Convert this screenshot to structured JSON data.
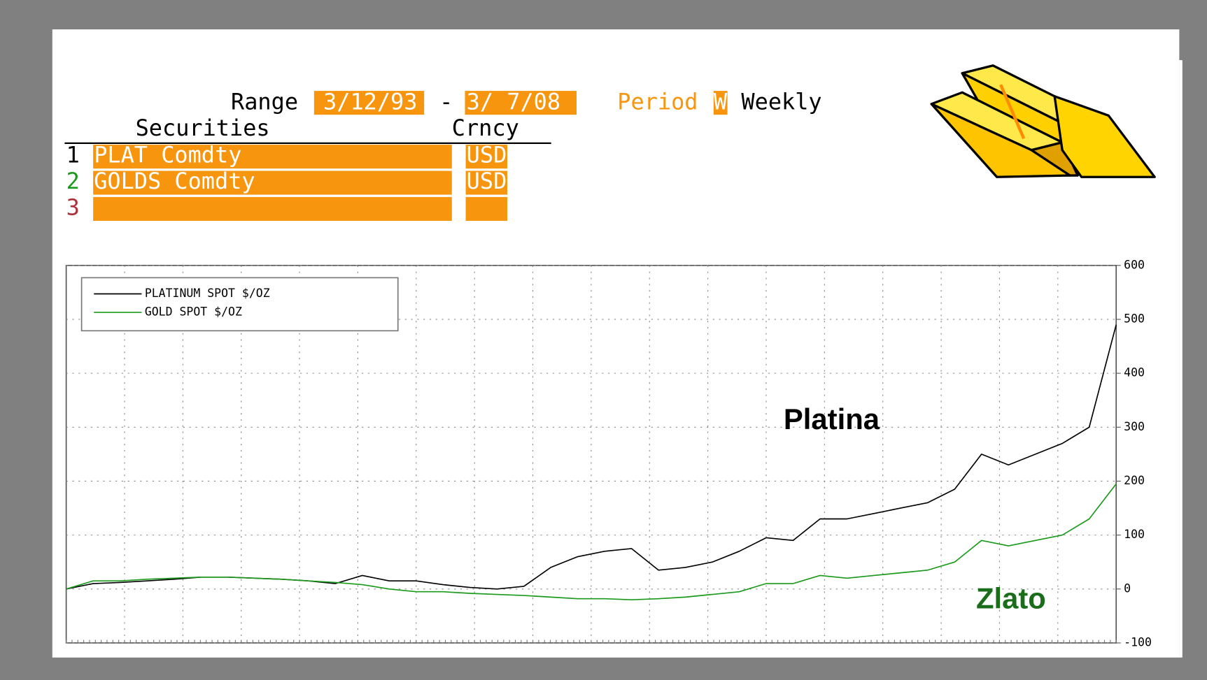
{
  "form": {
    "range_label": "Range",
    "range_start": "3/12/93",
    "range_sep": "-",
    "range_end": "3/ 7/08",
    "period_label": "Period",
    "period_code": "W",
    "period_name": "Weekly",
    "securities_header": "Securities",
    "currency_header": "Crncy",
    "rows": [
      {
        "num": "1",
        "security": "PLAT Comdty",
        "currency": "USD"
      },
      {
        "num": "2",
        "security": "GOLDS Comdty",
        "currency": "USD"
      },
      {
        "num": "3"
      }
    ]
  },
  "chart_data": {
    "type": "line",
    "series": [
      {
        "name": "PLATINUM SPOT $/OZ",
        "color": "#000000",
        "values": [
          0,
          10,
          12,
          15,
          18,
          22,
          22,
          20,
          18,
          15,
          10,
          25,
          15,
          15,
          8,
          3,
          0,
          5,
          40,
          60,
          70,
          75,
          35,
          40,
          50,
          70,
          95,
          90,
          130,
          130,
          140,
          150,
          160,
          185,
          250,
          230,
          250,
          270,
          300,
          490
        ]
      },
      {
        "name": "GOLD SPOT $/OZ",
        "color": "#1a9a1a",
        "values": [
          0,
          15,
          15,
          18,
          20,
          22,
          22,
          20,
          18,
          15,
          12,
          8,
          0,
          -5,
          -5,
          -8,
          -10,
          -12,
          -15,
          -18,
          -18,
          -20,
          -18,
          -15,
          -10,
          -5,
          10,
          10,
          25,
          20,
          25,
          30,
          35,
          50,
          90,
          80,
          90,
          100,
          130,
          195
        ]
      }
    ],
    "ylim": [
      -100,
      600
    ],
    "yticks": [
      -100,
      0,
      100,
      200,
      300,
      400,
      500,
      600
    ],
    "grid": true,
    "legend": "upper left",
    "annotations": [
      {
        "text": "Platina",
        "color": "#000000"
      },
      {
        "text": "Zlato",
        "color": "#1a6e1a"
      }
    ]
  }
}
